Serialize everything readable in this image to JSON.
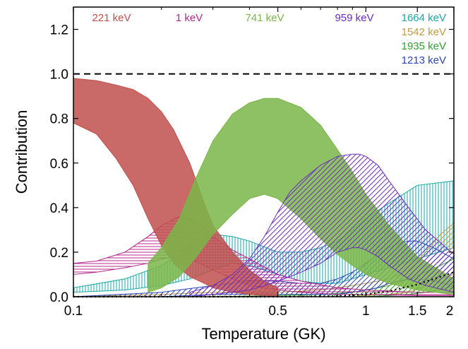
{
  "chart_data": {
    "type": "area",
    "title": "",
    "xlabel": "Temperature (GK)",
    "ylabel": "Contribution",
    "xscale": "log",
    "xlim": [
      0.1,
      2
    ],
    "ylim": [
      0,
      1.3
    ],
    "x_ticks": [
      {
        "value": 0.1,
        "label": "0.1"
      },
      {
        "value": 0.5,
        "label": "0.5"
      },
      {
        "value": 1,
        "label": "1"
      },
      {
        "value": 1.5,
        "label": "1.5"
      },
      {
        "value": 2,
        "label": "2"
      }
    ],
    "y_ticks": [
      {
        "value": 0,
        "label": "0.0"
      },
      {
        "value": 0.2,
        "label": "0.2"
      },
      {
        "value": 0.4,
        "label": "0.4"
      },
      {
        "value": 0.6,
        "label": "0.6"
      },
      {
        "value": 0.8,
        "label": "0.8"
      },
      {
        "value": 1.0,
        "label": "1.0"
      },
      {
        "value": 1.2,
        "label": "1.2"
      }
    ],
    "reference_lines": [
      {
        "y": 1.0,
        "style": "dashed",
        "color": "#000000"
      }
    ],
    "lower_curve": {
      "style": "dotted",
      "color": "#000000",
      "x": [
        0.1,
        0.5,
        0.8,
        1.0,
        1.2,
        1.5,
        2.0
      ],
      "y": [
        0.0,
        0.0,
        0.003,
        0.01,
        0.025,
        0.055,
        0.11
      ]
    },
    "series": [
      {
        "name": "1664 keV",
        "color": "#1aa6a6",
        "fill": "vlines",
        "x": [
          0.1,
          0.15,
          0.2,
          0.25,
          0.3,
          0.35,
          0.4,
          0.5,
          0.6,
          0.7,
          0.8,
          0.9,
          1.0,
          1.2,
          1.5,
          2.0
        ],
        "lower": [
          0.02,
          0.03,
          0.05,
          0.08,
          0.12,
          0.15,
          0.14,
          0.1,
          0.07,
          0.06,
          0.06,
          0.08,
          0.1,
          0.13,
          0.17,
          0.22
        ],
        "upper": [
          0.04,
          0.08,
          0.14,
          0.22,
          0.28,
          0.27,
          0.25,
          0.2,
          0.2,
          0.22,
          0.25,
          0.3,
          0.35,
          0.42,
          0.5,
          0.52
        ]
      },
      {
        "name": "1542 keV",
        "color": "#c49a3c",
        "fill": "diag",
        "x": [
          0.1,
          0.2,
          0.3,
          0.5,
          0.7,
          0.9,
          1.0,
          1.2,
          1.4,
          1.6,
          1.8,
          2.0
        ],
        "lower": [
          0.0,
          0.0,
          0.0,
          0.0,
          0.0,
          0.0,
          0.005,
          0.01,
          0.02,
          0.05,
          0.08,
          0.1
        ],
        "upper": [
          0.0,
          0.01,
          0.02,
          0.02,
          0.03,
          0.05,
          0.06,
          0.08,
          0.12,
          0.2,
          0.28,
          0.33
        ]
      },
      {
        "name": "1935 keV",
        "color": "#2ca02c",
        "fill": "diag",
        "x": [
          0.1,
          0.3,
          0.5,
          0.7,
          0.9,
          1.0,
          1.2,
          1.4,
          1.6,
          1.8,
          2.0
        ],
        "lower": [
          0.0,
          0.0,
          0.0,
          0.0,
          0.0,
          0.0,
          0.005,
          0.01,
          0.02,
          0.03,
          0.05
        ],
        "upper": [
          0.0,
          0.0,
          0.005,
          0.01,
          0.02,
          0.03,
          0.05,
          0.08,
          0.11,
          0.14,
          0.17
        ]
      },
      {
        "name": "1213 keV",
        "color": "#2a45b8",
        "fill": "diag",
        "x": [
          0.1,
          0.2,
          0.3,
          0.4,
          0.5,
          0.6,
          0.7,
          0.8,
          0.9,
          1.0,
          1.1,
          1.2,
          1.3,
          1.4,
          1.5,
          1.7,
          2.0
        ],
        "lower": [
          0.0,
          0.0,
          0.01,
          0.01,
          0.01,
          0.01,
          0.01,
          0.01,
          0.02,
          0.03,
          0.04,
          0.06,
          0.07,
          0.08,
          0.08,
          0.07,
          0.05
        ],
        "upper": [
          0.0,
          0.02,
          0.05,
          0.07,
          0.07,
          0.06,
          0.06,
          0.08,
          0.11,
          0.15,
          0.19,
          0.22,
          0.24,
          0.25,
          0.25,
          0.22,
          0.17
        ]
      },
      {
        "name": "1 keV",
        "color": "#b5298c",
        "fill": "hlines",
        "x": [
          0.1,
          0.12,
          0.15,
          0.18,
          0.2,
          0.23,
          0.25,
          0.28,
          0.3,
          0.35,
          0.4,
          0.5,
          0.6,
          0.8,
          1.0,
          1.5,
          2.0
        ],
        "lower": [
          0.1,
          0.11,
          0.13,
          0.15,
          0.17,
          0.18,
          0.17,
          0.14,
          0.12,
          0.08,
          0.05,
          0.03,
          0.02,
          0.01,
          0.01,
          0.005,
          0.005
        ],
        "upper": [
          0.15,
          0.16,
          0.2,
          0.27,
          0.32,
          0.36,
          0.35,
          0.31,
          0.27,
          0.21,
          0.17,
          0.1,
          0.07,
          0.04,
          0.03,
          0.02,
          0.02
        ]
      },
      {
        "name": "221 keV",
        "color": "#c0504d",
        "fill": "solid",
        "x": [
          0.1,
          0.12,
          0.14,
          0.16,
          0.18,
          0.2,
          0.22,
          0.25,
          0.28,
          0.3,
          0.35,
          0.4,
          0.45,
          0.5
        ],
        "lower": [
          0.78,
          0.73,
          0.62,
          0.5,
          0.35,
          0.23,
          0.15,
          0.09,
          0.06,
          0.04,
          0.02,
          0.01,
          0.005,
          0.0
        ],
        "upper": [
          0.98,
          0.97,
          0.95,
          0.93,
          0.89,
          0.83,
          0.75,
          0.6,
          0.42,
          0.32,
          0.2,
          0.12,
          0.07,
          0.04
        ]
      },
      {
        "name": "741 keV",
        "color": "#7ab648",
        "fill": "solid",
        "x": [
          0.18,
          0.2,
          0.23,
          0.26,
          0.3,
          0.35,
          0.4,
          0.45,
          0.5,
          0.6,
          0.7,
          0.8,
          0.9,
          1.0,
          1.2,
          1.5,
          2.0
        ],
        "lower": [
          0.02,
          0.04,
          0.09,
          0.17,
          0.28,
          0.37,
          0.44,
          0.46,
          0.44,
          0.35,
          0.26,
          0.19,
          0.14,
          0.1,
          0.06,
          0.03,
          0.01
        ],
        "upper": [
          0.15,
          0.22,
          0.35,
          0.52,
          0.7,
          0.82,
          0.87,
          0.89,
          0.89,
          0.85,
          0.77,
          0.66,
          0.56,
          0.46,
          0.32,
          0.18,
          0.08
        ]
      },
      {
        "name": "959 keV",
        "color": "#6a2cc0",
        "fill": "diag",
        "x": [
          0.25,
          0.3,
          0.35,
          0.4,
          0.45,
          0.5,
          0.55,
          0.6,
          0.7,
          0.8,
          0.9,
          0.95,
          1.0,
          1.1,
          1.2,
          1.4,
          1.6,
          2.0
        ],
        "lower": [
          0.0,
          0.01,
          0.02,
          0.03,
          0.05,
          0.07,
          0.09,
          0.11,
          0.15,
          0.2,
          0.22,
          0.22,
          0.21,
          0.18,
          0.14,
          0.08,
          0.05,
          0.02
        ],
        "upper": [
          0.02,
          0.05,
          0.1,
          0.17,
          0.27,
          0.38,
          0.47,
          0.52,
          0.59,
          0.63,
          0.64,
          0.64,
          0.63,
          0.59,
          0.52,
          0.4,
          0.3,
          0.19
        ]
      }
    ],
    "labels": [
      {
        "series": "221 keV",
        "text": "221 keV",
        "color": "#c0504d"
      },
      {
        "series": "1 keV",
        "text": "1 keV",
        "color": "#b5298c"
      },
      {
        "series": "741 keV",
        "text": "741 keV",
        "color": "#7ab648"
      },
      {
        "series": "959 keV",
        "text": "959 keV",
        "color": "#6a2cc0"
      },
      {
        "series": "1664 keV",
        "text": "1664 keV",
        "color": "#1aa6a6"
      },
      {
        "series": "1542 keV",
        "text": "1542 keV",
        "color": "#c49a3c"
      },
      {
        "series": "1935 keV",
        "text": "1935 keV",
        "color": "#2ca02c"
      },
      {
        "series": "1213 keV",
        "text": "1213 keV",
        "color": "#2a45b8"
      }
    ]
  }
}
